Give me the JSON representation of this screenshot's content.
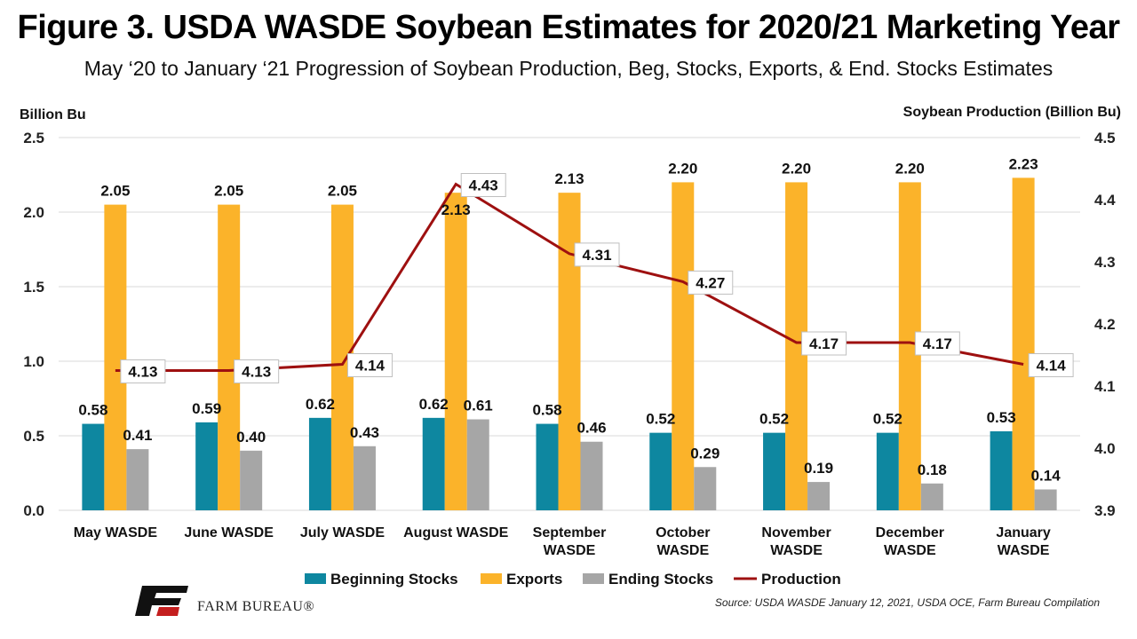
{
  "title": "Figure 3. USDA WASDE Soybean Estimates for 2020/21 Marketing Year",
  "subtitle": "May ‘20 to January ‘21 Progression of Soybean Production, Beg, Stocks, Exports, & End. Stocks Estimates",
  "source": "Source: USDA WASDE January 12, 2021, USDA OCE, Farm Bureau Compilation",
  "logo_text": "FARM BUREAU®",
  "colors": {
    "beginning": "#0e87a0",
    "exports": "#fbb32a",
    "ending": "#a6a6a6",
    "production": "#9e1010",
    "grid": "#d9d9d9"
  },
  "chart_data": {
    "type": "bar",
    "categories": [
      [
        "May WASDE"
      ],
      [
        "June WASDE"
      ],
      [
        "July WASDE"
      ],
      [
        "August WASDE"
      ],
      [
        "September",
        "WASDE"
      ],
      [
        "October",
        "WASDE"
      ],
      [
        "November",
        "WASDE"
      ],
      [
        "December",
        "WASDE"
      ],
      [
        "January",
        "WASDE"
      ]
    ],
    "ylabel_left": "Billion Bu",
    "ylabel_right": "Soybean Production (Billion Bu)",
    "ylim_left": [
      0,
      2.5
    ],
    "yticks_left": [
      "0.0",
      "0.5",
      "1.0",
      "1.5",
      "2.0",
      "2.5"
    ],
    "ylim_right": [
      3.9,
      4.5
    ],
    "yticks_right": [
      "3.9",
      "4.0",
      "4.1",
      "4.2",
      "4.3",
      "4.4",
      "4.5"
    ],
    "grid": true,
    "legend_position": "bottom",
    "series": [
      {
        "name": "Beginning Stocks",
        "type": "bar",
        "axis": "left",
        "values": [
          0.58,
          0.59,
          0.62,
          0.62,
          0.58,
          0.52,
          0.52,
          0.52,
          0.53
        ],
        "labels": [
          "0.58",
          "0.59",
          "0.62",
          "0.62",
          "0.58",
          "0.52",
          "0.52",
          "0.52",
          "0.53"
        ]
      },
      {
        "name": "Exports",
        "type": "bar",
        "axis": "left",
        "values": [
          2.05,
          2.05,
          2.05,
          2.13,
          2.13,
          2.2,
          2.2,
          2.2,
          2.23
        ],
        "labels": [
          "2.05",
          "2.05",
          "2.05",
          "2.13",
          "2.13",
          "2.20",
          "2.20",
          "2.20",
          "2.23"
        ]
      },
      {
        "name": "Ending Stocks",
        "type": "bar",
        "axis": "left",
        "values": [
          0.41,
          0.4,
          0.43,
          0.61,
          0.46,
          0.29,
          0.19,
          0.18,
          0.14
        ],
        "labels": [
          "0.41",
          "0.40",
          "0.43",
          "0.61",
          "0.46",
          "0.29",
          "0.19",
          "0.18",
          "0.14"
        ]
      },
      {
        "name": "Production",
        "type": "line",
        "axis": "right",
        "values": [
          4.125,
          4.125,
          4.135,
          4.425,
          4.313,
          4.268,
          4.17,
          4.17,
          4.135
        ],
        "labels": [
          "4.13",
          "4.13",
          "4.14",
          "4.43",
          "4.31",
          "4.27",
          "4.17",
          "4.17",
          "4.14"
        ]
      }
    ]
  }
}
